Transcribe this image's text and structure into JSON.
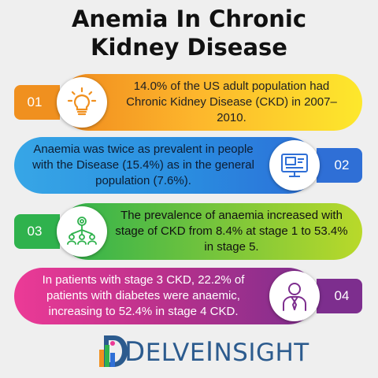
{
  "title_line1": "Anemia In Chronic",
  "title_line2": "Kidney Disease",
  "items": [
    {
      "number": "01",
      "icon": "lightbulb-icon",
      "text": "14.0% of the US adult population had Chronic Kidney Disease (CKD) in 2007–2010."
    },
    {
      "number": "02",
      "icon": "presentation-monitor-icon",
      "text": "Anaemia was twice as prevalent in people with the Disease (15.4%) as in the general population (7.6%)."
    },
    {
      "number": "03",
      "icon": "network-people-icon",
      "text": "The prevalence of anaemia increased with stage of CKD from 8.4% at stage 1 to 53.4% in stage 5."
    },
    {
      "number": "04",
      "icon": "businessman-icon",
      "text": "In patients with stage 3 CKD, 22.2% of patients with diabetes were anaemic, increasing to 52.4% in stage 4 CKD."
    }
  ],
  "brand": {
    "letter_d": "D",
    "rest_1": "ELVE",
    "letter_i": "I",
    "rest_2": "NSIGHT",
    "color": "#2c5b8e"
  },
  "colors": {
    "orange": "#f0901f",
    "blue": "#2f6fd6",
    "green": "#2fb24d",
    "purple": "#7d2e8e"
  }
}
